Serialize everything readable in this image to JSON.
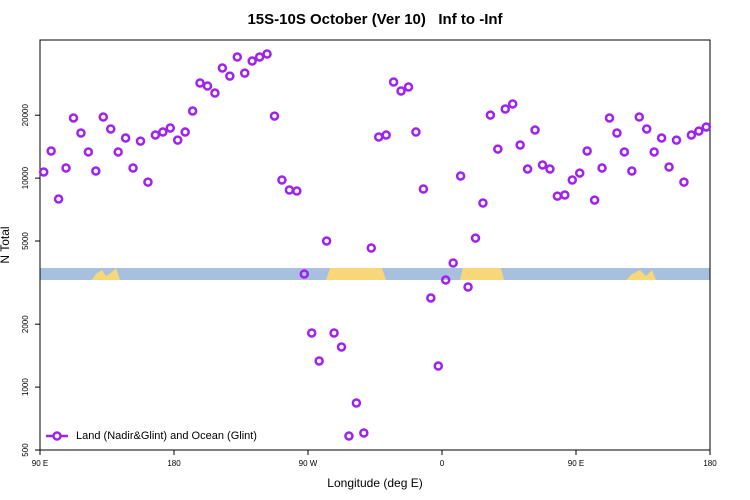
{
  "chart_data": {
    "type": "scatter",
    "title": "15S-10S October (Ver 10)   Inf to -Inf",
    "x_label": "Longitude (deg E)",
    "y_label": "N Total",
    "x": [
      92.5,
      97.5,
      102.5,
      107.5,
      112.5,
      117.5,
      122.5,
      127.5,
      132.5,
      137.5,
      142.5,
      147.5,
      152.5,
      157.5,
      162.5,
      167.5,
      172.5,
      177.5,
      182.5,
      187.5,
      192.5,
      197.5,
      202.5,
      207.5,
      212.5,
      217.5,
      222.5,
      227.5,
      232.5,
      237.5,
      242.5,
      247.5,
      252.5,
      257.5,
      262.5,
      267.5,
      272.5,
      277.5,
      282.5,
      287.5,
      292.5,
      297.5,
      302.5,
      307.5,
      312.5,
      317.5,
      322.5,
      327.5,
      332.5,
      337.5,
      342.5,
      347.5,
      352.5,
      357.5,
      362.5,
      367.5,
      372.5,
      377.5,
      382.5,
      387.5,
      392.5,
      397.5,
      402.5,
      407.5,
      412.5,
      417.5,
      422.5,
      427.5,
      432.5,
      437.5,
      442.5,
      447.5,
      452.5,
      457.5,
      462.5,
      467.5,
      472.5,
      477.5,
      482.5,
      487.5,
      492.5,
      497.5,
      502.5,
      507.5,
      512.5,
      517.5,
      522.5,
      527.5,
      532.5,
      537.5
    ],
    "series": [
      {
        "name": "Land (Nadir&Glint) and Ocean (Glint)",
        "color": "#a020f0",
        "values": [
          10690,
          13480,
          7940,
          11180,
          19400,
          16440,
          13340,
          10810,
          19600,
          17180,
          13340,
          15550,
          11180,
          15030,
          9570,
          16070,
          16610,
          17370,
          15200,
          16610,
          20940,
          28510,
          27590,
          25530,
          33640,
          30770,
          37960,
          31800,
          36320,
          37960,
          39250,
          19810,
          9790,
          8770,
          8670,
          3476,
          1815,
          1333,
          5000,
          1815,
          1555,
          583,
          839,
          603,
          4630,
          15730,
          16070,
          28830,
          26110,
          27290,
          16610,
          8870,
          2670,
          1261,
          3253,
          3925,
          10230,
          3013,
          5165,
          7600,
          20030,
          13770,
          21420,
          22640,
          14400,
          11050,
          16980,
          11560,
          11050,
          8200,
          8300,
          9790,
          10570,
          13480,
          7850,
          11180,
          19400,
          16440,
          13340,
          10810,
          19600,
          17180,
          13340,
          15550,
          11300,
          15200,
          9570,
          16070,
          16790,
          17550
        ]
      }
    ],
    "xlim": [
      90,
      540
    ],
    "xticks": [
      {
        "value": 90,
        "label": "90 E"
      },
      180,
      {
        "value": 270,
        "label": "90 W"
      },
      {
        "value": 360,
        "label": "0"
      },
      {
        "value": 450,
        "label": "90 E"
      },
      {
        "value": 540,
        "label": "180"
      }
    ],
    "ylim": [
      500,
      45800
    ],
    "yticks": [
      500,
      1000,
      2000,
      5000,
      10000,
      20000
    ],
    "y_scale": "log",
    "legend": "lower left"
  }
}
